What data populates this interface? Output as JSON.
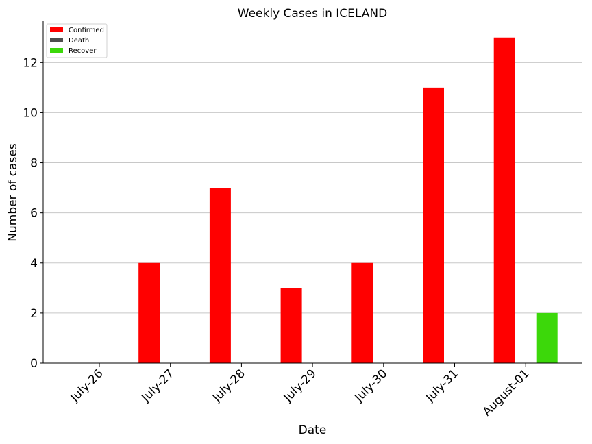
{
  "chart_data": {
    "type": "bar",
    "title": "Weekly Cases in ICELAND",
    "xlabel": "Date",
    "ylabel": "Number of cases",
    "categories": [
      "July-26",
      "July-27",
      "July-28",
      "July-29",
      "July-30",
      "July-31",
      "August-01"
    ],
    "series": [
      {
        "name": "Confirmed",
        "color": "#ff0000",
        "values": [
          0,
          4,
          7,
          3,
          4,
          11,
          13
        ]
      },
      {
        "name": "Death",
        "color": "#4d4d4d",
        "values": [
          0,
          0,
          0,
          0,
          0,
          0,
          0
        ]
      },
      {
        "name": "Recover",
        "color": "#3cd80a",
        "values": [
          0,
          0,
          0,
          0,
          0,
          0,
          2
        ]
      }
    ],
    "ylim": [
      0,
      13.65
    ],
    "yticks": [
      0,
      2,
      4,
      6,
      8,
      10,
      12
    ],
    "grid": "horizontal",
    "legend_position": "top-left"
  }
}
